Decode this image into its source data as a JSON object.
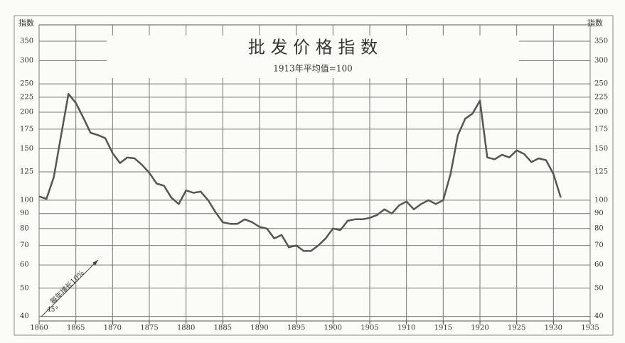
{
  "chart_data": {
    "type": "line",
    "title": "批 发 价 格 指 数",
    "subtitle": "1913年平均值=100",
    "y_label": "指数",
    "annotations": [
      "每年增长10%",
      "45°"
    ],
    "x": [
      1860,
      1861,
      1862,
      1863,
      1864,
      1865,
      1866,
      1867,
      1868,
      1869,
      1870,
      1871,
      1872,
      1873,
      1874,
      1875,
      1876,
      1877,
      1878,
      1879,
      1880,
      1881,
      1882,
      1883,
      1884,
      1885,
      1886,
      1887,
      1888,
      1889,
      1890,
      1891,
      1892,
      1893,
      1894,
      1895,
      1896,
      1897,
      1898,
      1899,
      1900,
      1901,
      1902,
      1903,
      1904,
      1905,
      1906,
      1907,
      1908,
      1909,
      1910,
      1911,
      1912,
      1913,
      1914,
      1915,
      1916,
      1917,
      1918,
      1919,
      1920,
      1921,
      1922,
      1923,
      1924,
      1925,
      1926,
      1927,
      1928,
      1929,
      1930,
      1931
    ],
    "values": [
      103,
      101,
      120,
      167,
      231,
      215,
      192,
      170,
      167,
      163,
      145,
      134,
      140,
      139,
      132,
      124,
      114,
      112,
      102,
      97,
      108,
      106,
      107,
      100,
      91,
      84,
      83,
      83,
      86,
      84,
      81,
      80,
      74,
      76,
      69,
      70,
      67,
      67,
      70,
      74,
      80,
      79,
      85,
      86,
      86,
      87,
      89,
      93,
      90,
      96,
      99,
      93,
      97,
      100,
      97,
      100,
      123,
      167,
      190,
      198,
      219,
      140,
      138,
      143,
      140,
      148,
      144,
      135,
      139,
      137,
      123,
      102
    ],
    "color": "#555555",
    "xlim": [
      1860,
      1935
    ],
    "xticks": [
      1860,
      1865,
      1870,
      1875,
      1880,
      1885,
      1890,
      1895,
      1900,
      1905,
      1910,
      1915,
      1920,
      1925,
      1930,
      1935
    ],
    "ylim": [
      38.6,
      398
    ],
    "yticks": [
      40,
      50,
      60,
      70,
      80,
      90,
      100,
      125,
      150,
      175,
      200,
      225,
      250,
      300,
      350
    ],
    "log_scale": true,
    "grid": true
  }
}
